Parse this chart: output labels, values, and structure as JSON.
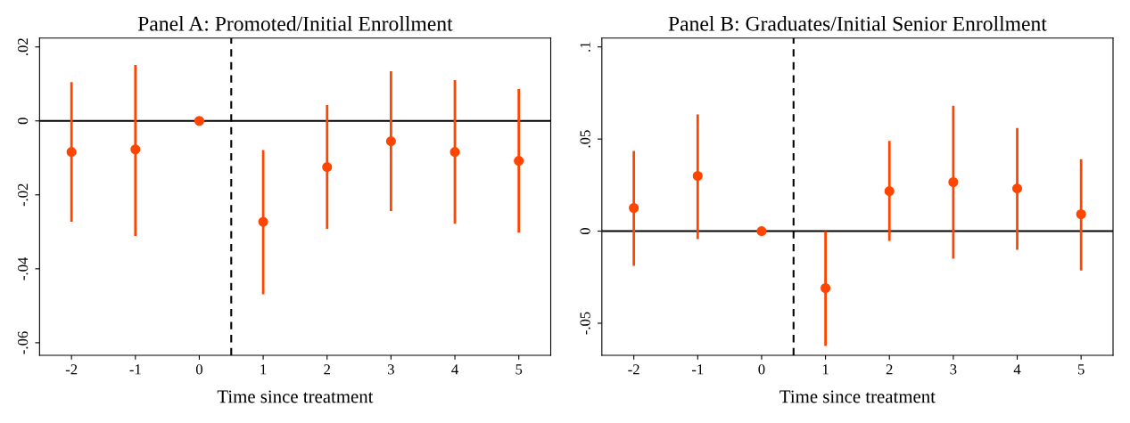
{
  "chart_data": [
    {
      "type": "scatter",
      "title": "Panel A: Promoted/Initial Enrollment",
      "xlabel": "Time since treatment",
      "x": [
        -2,
        -1,
        0,
        1,
        2,
        3,
        4,
        5
      ],
      "series": [
        {
          "color": "#ff4500",
          "values": [
            -0.0084,
            -0.0077,
            0,
            -0.0273,
            -0.0125,
            -0.0055,
            -0.0084,
            -0.0108
          ],
          "errors": [
            [
              -0.0273,
              0.0105
            ],
            [
              -0.0311,
              0.0151
            ],
            null,
            [
              -0.0469,
              -0.0079
            ],
            [
              -0.0292,
              0.0043
            ],
            [
              -0.0244,
              0.0134
            ],
            [
              -0.0278,
              0.011
            ],
            [
              -0.0302,
              0.0086
            ]
          ]
        }
      ],
      "marker": "circle",
      "grid": false,
      "legend": false,
      "xlim": [
        -2.5,
        5.5
      ],
      "xticks": [
        -2,
        -1,
        0,
        1,
        2,
        3,
        4,
        5
      ],
      "ylim": [
        -0.0634,
        0.0224
      ],
      "yticks": [
        {
          "value": -0.06,
          "label": "-.06"
        },
        {
          "value": -0.04,
          "label": "-.04"
        },
        {
          "value": -0.02,
          "label": "-.02"
        },
        0,
        {
          "value": 0.02,
          "label": ".02"
        }
      ],
      "ref_lines": [
        {
          "axis": "y",
          "value": 0,
          "color": "#000000",
          "line_style": "solid"
        },
        {
          "axis": "x",
          "value": 0.5,
          "color": "#000000",
          "line_style": "dashed"
        }
      ]
    },
    {
      "type": "scatter",
      "title": "Panel B: Graduates/Initial Senior Enrollment",
      "xlabel": "Time since treatment",
      "x": [
        -2,
        -1,
        0,
        1,
        2,
        3,
        4,
        5
      ],
      "series": [
        {
          "color": "#ff4500",
          "values": [
            0.0126,
            0.03,
            0,
            -0.0309,
            0.0217,
            0.0266,
            0.0232,
            0.0092
          ],
          "errors": [
            [
              -0.0188,
              0.0435
            ],
            [
              -0.0043,
              0.0634
            ],
            null,
            [
              -0.0623,
              0
            ],
            [
              -0.0053,
              0.049
            ],
            [
              -0.015,
              0.0681
            ],
            [
              -0.0101,
              0.056
            ],
            [
              -0.0213,
              0.0391
            ]
          ]
        }
      ],
      "marker": "circle",
      "grid": false,
      "legend": false,
      "xlim": [
        -2.5,
        5.5
      ],
      "xticks": [
        -2,
        -1,
        0,
        1,
        2,
        3,
        4,
        5
      ],
      "ylim": [
        -0.0674,
        0.1048
      ],
      "yticks": [
        {
          "value": -0.05,
          "label": "-.05"
        },
        0,
        {
          "value": 0.05,
          "label": ".05"
        },
        {
          "value": 0.1,
          "label": ".1"
        }
      ],
      "ref_lines": [
        {
          "axis": "y",
          "value": 0,
          "color": "#000000",
          "line_style": "solid"
        },
        {
          "axis": "x",
          "value": 0.5,
          "color": "#000000",
          "line_style": "dashed"
        }
      ]
    }
  ]
}
